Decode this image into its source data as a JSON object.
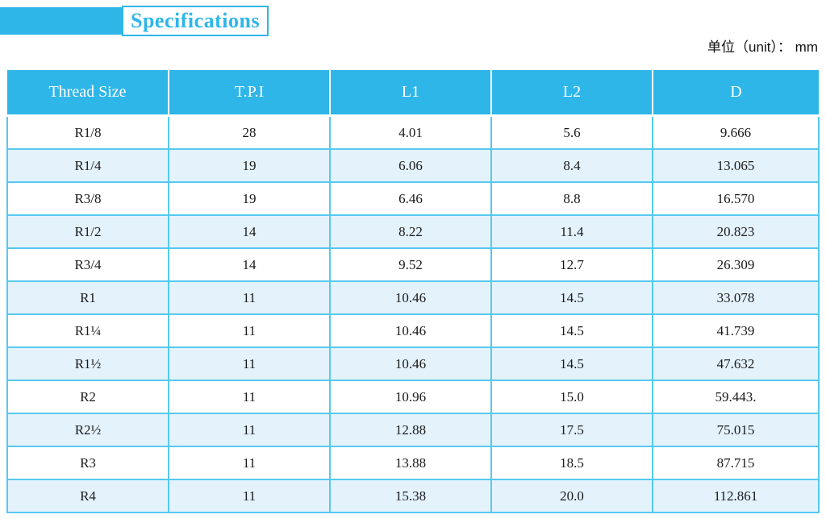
{
  "title": {
    "label": "Specifications"
  },
  "unit_note": "单位（unit）： mm",
  "colors": {
    "accent": "#2eb6e9",
    "row_alt": "#e4f2fc",
    "grid_border": "#55c9f0",
    "header_text": "#ffffff",
    "body_text": "#1a1a1a"
  },
  "table": {
    "headers": [
      "Thread Size",
      "T.P.I",
      "L1",
      "L2",
      "D"
    ],
    "rows": [
      [
        "R1/8",
        "28",
        "4.01",
        "5.6",
        "9.666"
      ],
      [
        "R1/4",
        "19",
        "6.06",
        "8.4",
        "13.065"
      ],
      [
        "R3/8",
        "19",
        "6.46",
        "8.8",
        "16.570"
      ],
      [
        "R1/2",
        "14",
        "8.22",
        "11.4",
        "20.823"
      ],
      [
        "R3/4",
        "14",
        "9.52",
        "12.7",
        "26.309"
      ],
      [
        "R1",
        "11",
        "10.46",
        "14.5",
        "33.078"
      ],
      [
        "R1¼",
        "11",
        "10.46",
        "14.5",
        "41.739"
      ],
      [
        "R1½",
        "11",
        "10.46",
        "14.5",
        "47.632"
      ],
      [
        "R2",
        "11",
        "10.96",
        "15.0",
        "59.443."
      ],
      [
        "R2½",
        "11",
        "12.88",
        "17.5",
        "75.015"
      ],
      [
        "R3",
        "11",
        "13.88",
        "18.5",
        "87.715"
      ],
      [
        "R4",
        "11",
        "15.38",
        "20.0",
        "112.861"
      ]
    ]
  }
}
